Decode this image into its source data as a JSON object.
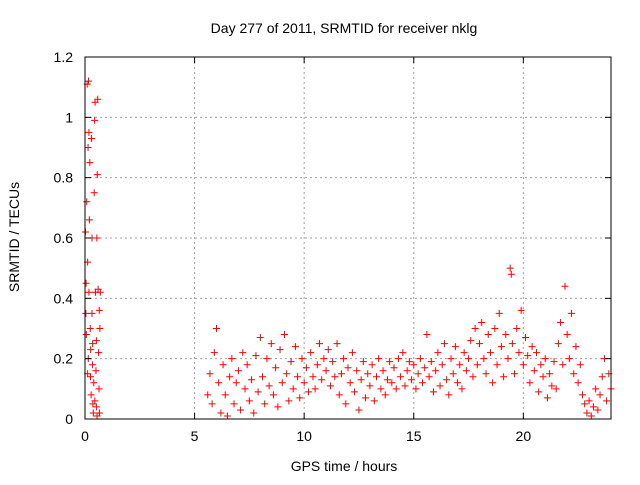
{
  "chart_data": {
    "type": "scatter",
    "title": "Day 277 of 2011, SRMTID for receiver nklg",
    "xlabel": "GPS time / hours",
    "ylabel": "SRMTID / TECUs",
    "xlim": [
      0,
      24
    ],
    "ylim": [
      0,
      1.2
    ],
    "xticks": [
      0,
      5,
      10,
      15,
      20
    ],
    "xtick_labels": [
      "0",
      "5",
      "10",
      "15",
      "20"
    ],
    "yticks": [
      0,
      0.2,
      0.4,
      0.6,
      0.8,
      1.0,
      1.2
    ],
    "ytick_labels": [
      "0",
      "0.2",
      "0.4",
      "0.6",
      "0.8",
      "1",
      "1.2"
    ],
    "grid": true,
    "marker": "plus",
    "marker_color": "#ff0000",
    "series": [
      {
        "name": "SRMTID",
        "points": [
          [
            0.02,
            0.62
          ],
          [
            0.04,
            0.35
          ],
          [
            0.06,
            0.28
          ],
          [
            0.08,
            0.72
          ],
          [
            0.1,
            1.11
          ],
          [
            0.12,
            0.52
          ],
          [
            0.14,
            0.9
          ],
          [
            0.16,
            1.12
          ],
          [
            0.18,
            0.42
          ],
          [
            0.2,
            0.66
          ],
          [
            0.22,
            0.85
          ],
          [
            0.24,
            0.3
          ],
          [
            0.26,
            0.23
          ],
          [
            0.28,
            0.08
          ],
          [
            0.3,
            0.93
          ],
          [
            0.32,
            0.35
          ],
          [
            0.34,
            0.18
          ],
          [
            0.36,
            0.05
          ],
          [
            0.38,
            0.02
          ],
          [
            0.4,
            0.12
          ],
          [
            0.42,
            0.75
          ],
          [
            0.44,
            0.99
          ],
          [
            0.46,
            1.05
          ],
          [
            0.48,
            0.42
          ],
          [
            0.5,
            0.16
          ],
          [
            0.52,
            0.04
          ],
          [
            0.54,
            0.6
          ],
          [
            0.56,
            0.81
          ],
          [
            0.58,
            1.06
          ],
          [
            0.6,
            0.43
          ],
          [
            0.62,
            0.22
          ],
          [
            0.64,
            0.1
          ],
          [
            0.66,
            0.02
          ],
          [
            0.68,
            0.3
          ],
          [
            0.7,
            0.42
          ],
          [
            0.05,
            0.45
          ],
          [
            0.15,
            0.2
          ],
          [
            0.25,
            0.14
          ],
          [
            0.35,
            0.25
          ],
          [
            0.45,
            0.06
          ],
          [
            0.55,
            0.01
          ],
          [
            0.65,
            0.36
          ],
          [
            0.12,
            0.15
          ],
          [
            0.32,
            0.6
          ],
          [
            0.52,
            0.26
          ],
          [
            0.18,
            0.95
          ],
          [
            5.6,
            0.08
          ],
          [
            5.7,
            0.15
          ],
          [
            5.8,
            0.05
          ],
          [
            5.9,
            0.22
          ],
          [
            6.0,
            0.3
          ],
          [
            6.1,
            0.12
          ],
          [
            6.2,
            0.02
          ],
          [
            6.3,
            0.18
          ],
          [
            6.4,
            0.08
          ],
          [
            6.5,
            0.01
          ],
          [
            6.6,
            0.14
          ],
          [
            6.7,
            0.2
          ],
          [
            6.8,
            0.05
          ],
          [
            6.9,
            0.12
          ],
          [
            7.0,
            0.16
          ],
          [
            7.1,
            0.03
          ],
          [
            7.2,
            0.22
          ],
          [
            7.3,
            0.1
          ],
          [
            7.4,
            0.18
          ],
          [
            7.5,
            0.06
          ],
          [
            7.6,
            0.13
          ],
          [
            7.7,
            0.02
          ],
          [
            7.8,
            0.21
          ],
          [
            7.9,
            0.09
          ],
          [
            8.0,
            0.27
          ],
          [
            8.1,
            0.14
          ],
          [
            8.2,
            0.05
          ],
          [
            8.3,
            0.2
          ],
          [
            8.4,
            0.11
          ],
          [
            8.5,
            0.25
          ],
          [
            8.6,
            0.08
          ],
          [
            8.7,
            0.17
          ],
          [
            8.8,
            0.04
          ],
          [
            8.9,
            0.23
          ],
          [
            9.0,
            0.12
          ],
          [
            9.1,
            0.28
          ],
          [
            9.2,
            0.15
          ],
          [
            9.3,
            0.06
          ],
          [
            9.4,
            0.19
          ],
          [
            9.5,
            0.1
          ],
          [
            9.6,
            0.24
          ],
          [
            9.7,
            0.14
          ],
          [
            9.8,
            0.07
          ],
          [
            9.9,
            0.2
          ],
          [
            10.0,
            0.12
          ],
          [
            10.1,
            0.17
          ],
          [
            10.2,
            0.09
          ],
          [
            10.3,
            0.22
          ],
          [
            10.4,
            0.14
          ],
          [
            10.5,
            0.1
          ],
          [
            10.6,
            0.18
          ],
          [
            10.7,
            0.25
          ],
          [
            10.8,
            0.13
          ],
          [
            10.9,
            0.2
          ],
          [
            11.0,
            0.16
          ],
          [
            11.1,
            0.23
          ],
          [
            11.2,
            0.11
          ],
          [
            11.3,
            0.19
          ],
          [
            11.4,
            0.14
          ],
          [
            11.5,
            0.25
          ],
          [
            11.6,
            0.08
          ],
          [
            11.7,
            0.15
          ],
          [
            11.8,
            0.2
          ],
          [
            11.9,
            0.05
          ],
          [
            12.0,
            0.17
          ],
          [
            12.1,
            0.12
          ],
          [
            12.2,
            0.22
          ],
          [
            12.3,
            0.09
          ],
          [
            12.4,
            0.16
          ],
          [
            12.5,
            0.03
          ],
          [
            12.6,
            0.13
          ],
          [
            12.7,
            0.19
          ],
          [
            12.8,
            0.07
          ],
          [
            12.9,
            0.15
          ],
          [
            13.0,
            0.11
          ],
          [
            13.1,
            0.18
          ],
          [
            13.2,
            0.06
          ],
          [
            13.3,
            0.14
          ],
          [
            13.4,
            0.2
          ],
          [
            13.5,
            0.1
          ],
          [
            13.6,
            0.16
          ],
          [
            13.7,
            0.08
          ],
          [
            13.8,
            0.13
          ],
          [
            13.9,
            0.19
          ],
          [
            14.0,
            0.12
          ],
          [
            14.1,
            0.17
          ],
          [
            14.2,
            0.1
          ],
          [
            14.3,
            0.2
          ],
          [
            14.4,
            0.14
          ],
          [
            14.5,
            0.22
          ],
          [
            14.6,
            0.11
          ],
          [
            14.7,
            0.16
          ],
          [
            14.8,
            0.19
          ],
          [
            14.9,
            0.13
          ],
          [
            15.0,
            0.18
          ],
          [
            15.1,
            0.1
          ],
          [
            15.2,
            0.15
          ],
          [
            15.3,
            0.2
          ],
          [
            15.4,
            0.12
          ],
          [
            15.5,
            0.17
          ],
          [
            15.6,
            0.28
          ],
          [
            15.7,
            0.14
          ],
          [
            15.8,
            0.19
          ],
          [
            15.9,
            0.09
          ],
          [
            16.0,
            0.16
          ],
          [
            16.1,
            0.22
          ],
          [
            16.2,
            0.11
          ],
          [
            16.3,
            0.18
          ],
          [
            16.4,
            0.25
          ],
          [
            16.5,
            0.13
          ],
          [
            16.6,
            0.08
          ],
          [
            16.7,
            0.2
          ],
          [
            16.8,
            0.15
          ],
          [
            16.9,
            0.24
          ],
          [
            17.0,
            0.12
          ],
          [
            17.1,
            0.18
          ],
          [
            17.2,
            0.1
          ],
          [
            17.3,
            0.22
          ],
          [
            17.4,
            0.16
          ],
          [
            17.5,
            0.2
          ],
          [
            17.6,
            0.26
          ],
          [
            17.7,
            0.14
          ],
          [
            17.8,
            0.3
          ],
          [
            17.9,
            0.18
          ],
          [
            18.0,
            0.25
          ],
          [
            18.1,
            0.32
          ],
          [
            18.2,
            0.2
          ],
          [
            18.3,
            0.15
          ],
          [
            18.4,
            0.28
          ],
          [
            18.5,
            0.22
          ],
          [
            18.6,
            0.12
          ],
          [
            18.7,
            0.3
          ],
          [
            18.8,
            0.18
          ],
          [
            18.9,
            0.35
          ],
          [
            19.0,
            0.24
          ],
          [
            19.1,
            0.14
          ],
          [
            19.2,
            0.28
          ],
          [
            19.3,
            0.2
          ],
          [
            19.4,
            0.5
          ],
          [
            19.45,
            0.48
          ],
          [
            19.5,
            0.25
          ],
          [
            19.6,
            0.15
          ],
          [
            19.7,
            0.3
          ],
          [
            19.8,
            0.22
          ],
          [
            19.9,
            0.36
          ],
          [
            20.0,
            0.18
          ],
          [
            20.1,
            0.27
          ],
          [
            20.2,
            0.21
          ],
          [
            20.3,
            0.12
          ],
          [
            20.4,
            0.24
          ],
          [
            20.5,
            0.16
          ],
          [
            20.6,
            0.22
          ],
          [
            20.7,
            0.09
          ],
          [
            20.8,
            0.18
          ],
          [
            20.9,
            0.14
          ],
          [
            21.0,
            0.2
          ],
          [
            21.1,
            0.07
          ],
          [
            21.2,
            0.15
          ],
          [
            21.3,
            0.11
          ],
          [
            21.4,
            0.19
          ],
          [
            21.5,
            0.1
          ],
          [
            21.6,
            0.25
          ],
          [
            21.7,
            0.32
          ],
          [
            21.8,
            0.18
          ],
          [
            21.9,
            0.44
          ],
          [
            22.0,
            0.28
          ],
          [
            22.1,
            0.2
          ],
          [
            22.2,
            0.35
          ],
          [
            22.3,
            0.15
          ],
          [
            22.4,
            0.24
          ],
          [
            22.5,
            0.12
          ],
          [
            22.6,
            0.18
          ],
          [
            22.7,
            0.08
          ],
          [
            22.8,
            0.05
          ],
          [
            22.9,
            0.02
          ],
          [
            23.0,
            0.06
          ],
          [
            23.1,
            0.01
          ],
          [
            23.2,
            0.04
          ],
          [
            23.3,
            0.1
          ],
          [
            23.4,
            0.03
          ],
          [
            23.5,
            0.08
          ],
          [
            23.6,
            0.14
          ],
          [
            23.7,
            0.2
          ],
          [
            23.8,
            0.06
          ],
          [
            23.9,
            0.15
          ],
          [
            24.0,
            0.1
          ]
        ]
      }
    ]
  }
}
